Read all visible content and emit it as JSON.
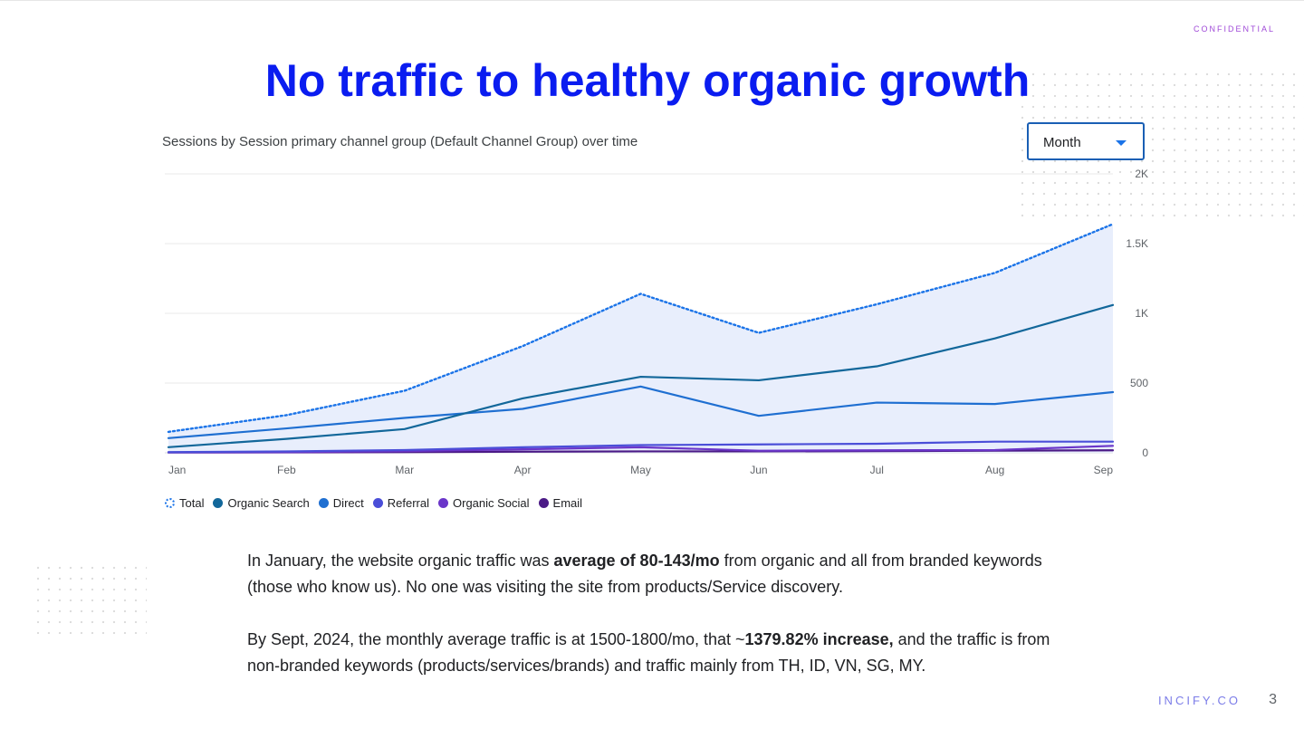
{
  "slide": {
    "confidential": "CONFIDENTIAL",
    "title": "No traffic to healthy organic growth",
    "footer_brand": "INCIFY.CO",
    "page_number": "3"
  },
  "chart_header": {
    "subtitle": "Sessions by Session primary channel group (Default Channel Group) over time",
    "dropdown_value": "Month"
  },
  "chart_data": {
    "type": "line",
    "title": "Sessions by Session primary channel group (Default Channel Group) over time",
    "xlabel": "",
    "ylabel": "",
    "categories": [
      "Jan",
      "Feb",
      "Mar",
      "Apr",
      "May",
      "Jun",
      "Jul",
      "Aug",
      "Sep"
    ],
    "ylim": [
      0,
      2000
    ],
    "yticks": [
      0,
      500,
      1000,
      1500,
      2000
    ],
    "ytick_labels": [
      "0",
      "500",
      "1K",
      "1.5K",
      "2K"
    ],
    "grid": true,
    "legend": "bottom-left",
    "series": [
      {
        "name": "Total",
        "values": [
          150,
          270,
          445,
          765,
          1140,
          860,
          1065,
          1290,
          1640
        ],
        "color": "#1a73e8",
        "style": "dotted",
        "fill": "#e8eefc"
      },
      {
        "name": "Organic Search",
        "values": [
          40,
          100,
          170,
          390,
          545,
          520,
          620,
          820,
          1060
        ],
        "color": "#12679a",
        "style": "solid"
      },
      {
        "name": "Direct",
        "values": [
          105,
          175,
          250,
          315,
          475,
          265,
          360,
          350,
          435
        ],
        "color": "#1f6fd1",
        "style": "solid"
      },
      {
        "name": "Referral",
        "values": [
          5,
          10,
          20,
          40,
          55,
          60,
          65,
          80,
          80
        ],
        "color": "#4a4ed8",
        "style": "solid"
      },
      {
        "name": "Organic Social",
        "values": [
          3,
          5,
          12,
          25,
          40,
          15,
          18,
          20,
          50
        ],
        "color": "#6a35c9",
        "style": "solid"
      },
      {
        "name": "Email",
        "values": [
          2,
          3,
          5,
          8,
          10,
          10,
          12,
          15,
          18
        ],
        "color": "#4b1a86",
        "style": "solid"
      }
    ]
  },
  "legend_items": [
    {
      "label": "Total"
    },
    {
      "label": "Organic Search",
      "color": "#12679a"
    },
    {
      "label": "Direct",
      "color": "#1f6fd1"
    },
    {
      "label": "Referral",
      "color": "#4a4ed8"
    },
    {
      "label": "Organic Social",
      "color": "#6a35c9"
    },
    {
      "label": "Email",
      "color": "#4b1a86"
    }
  ],
  "body": {
    "p1_pre": "In January, the website organic traffic was ",
    "p1_bold": "average of 80-143/mo",
    "p1_post": " from organic and all from branded keywords (those who know us). No one was visiting the site from products/Service discovery.",
    "p2_pre": "By Sept, 2024, the monthly average traffic is at 1500-1800/mo, that ~",
    "p2_bold": "1379.82% increase,",
    "p2_post": " and the traffic is from non-branded keywords (products/services/brands) and traffic mainly from TH, ID, VN, SG, MY."
  }
}
